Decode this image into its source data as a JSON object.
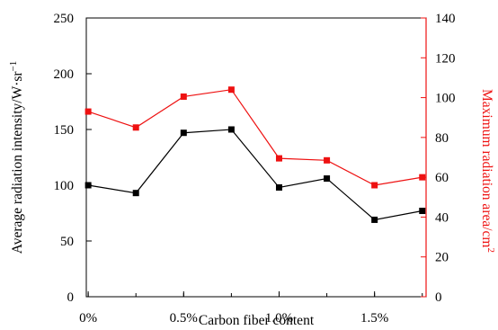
{
  "chart_data": {
    "type": "line",
    "xlabel": "Carbon fiber content",
    "x_tick_labels": [
      "0%",
      "0.5%",
      "1.0%",
      "1.5%"
    ],
    "x_tick_values": [
      0,
      0.5,
      1.0,
      1.5
    ],
    "xlim": [
      -0.01,
      1.77
    ],
    "x": [
      0,
      0.25,
      0.5,
      0.75,
      1.0,
      1.25,
      1.5,
      1.75
    ],
    "series": [
      {
        "name": "",
        "axis": "left",
        "color": "#000000",
        "marker": "square",
        "values": [
          100,
          93,
          147,
          150,
          98,
          106,
          69,
          77
        ]
      },
      {
        "name": "",
        "axis": "right",
        "color": "#ee1111",
        "marker": "square",
        "values": [
          93,
          85,
          100.5,
          104,
          69.5,
          68.5,
          56,
          60
        ]
      }
    ],
    "y_left": {
      "label": "Average radiation intensity/W·sr",
      "label_superscript": "−1",
      "ylim": [
        0,
        250
      ],
      "ticks": [
        "0",
        "50",
        "100",
        "150",
        "200",
        "250"
      ]
    },
    "y_right": {
      "label": "Maximum radiation area/cm",
      "label_superscript": "2",
      "ylim": [
        0,
        140
      ],
      "ticks": [
        "0",
        "20",
        "40",
        "60",
        "80",
        "100",
        "120",
        "140"
      ],
      "color": "#ee1111"
    },
    "grid": false
  }
}
